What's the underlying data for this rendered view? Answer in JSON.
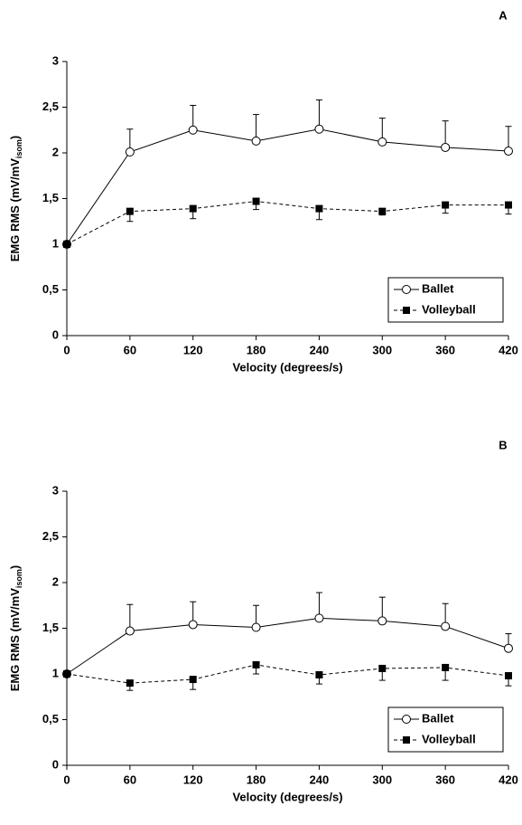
{
  "chart_data": [
    {
      "type": "line",
      "panel": "A",
      "ylabel": "EMG RMS (mV/mV",
      "ylabel_sub": "isom",
      "ylabel_end": ")",
      "xlabel": "Velocity (degrees/s)",
      "x": [
        0,
        60,
        120,
        180,
        240,
        300,
        360,
        420
      ],
      "xlim": [
        0,
        420
      ],
      "xticks": [
        0,
        60,
        120,
        180,
        240,
        300,
        360,
        420
      ],
      "ylim": [
        0,
        3
      ],
      "yticks": [
        0,
        {
          "value": 0.5,
          "label": "0,5"
        },
        1,
        {
          "value": 1.5,
          "label": "1,5"
        },
        2,
        {
          "value": 2.5,
          "label": "2,5"
        },
        3
      ],
      "legend": "lower right",
      "series": [
        {
          "name": "Ballet",
          "color": "#000000",
          "marker": "circle",
          "dash": false,
          "error_side": "upper",
          "values": [
            1,
            2.01,
            2.25,
            2.13,
            2.26,
            2.12,
            2.06,
            2.02
          ],
          "errors": [
            0,
            0.25,
            0.27,
            0.29,
            0.32,
            0.26,
            0.29,
            0.27
          ]
        },
        {
          "name": "Volleyball",
          "color": "#000000",
          "marker": "square",
          "dash": true,
          "error_side": "lower",
          "values": [
            1,
            1.36,
            1.39,
            1.47,
            1.39,
            1.36,
            1.43,
            1.43
          ],
          "errors": [
            0,
            0.11,
            0.11,
            0.09,
            0.12,
            0.04,
            0.09,
            0.1
          ]
        }
      ]
    },
    {
      "type": "line",
      "panel": "B",
      "ylabel": "EMG RMS (mV/mV",
      "ylabel_sub": "isom",
      "ylabel_end": ")",
      "xlabel": "Velocity (degrees/s)",
      "x": [
        0,
        60,
        120,
        180,
        240,
        300,
        360,
        420
      ],
      "xlim": [
        0,
        420
      ],
      "xticks": [
        0,
        60,
        120,
        180,
        240,
        300,
        360,
        420
      ],
      "ylim": [
        0,
        3
      ],
      "yticks": [
        0,
        {
          "value": 0.5,
          "label": "0,5"
        },
        1,
        {
          "value": 1.5,
          "label": "1,5"
        },
        2,
        {
          "value": 2.5,
          "label": "2,5"
        },
        3
      ],
      "legend": "lower right",
      "series": [
        {
          "name": "Ballet",
          "color": "#000000",
          "marker": "circle",
          "dash": false,
          "error_side": "upper",
          "values": [
            1,
            1.47,
            1.54,
            1.51,
            1.61,
            1.58,
            1.52,
            1.28
          ],
          "errors": [
            0,
            0.29,
            0.25,
            0.24,
            0.28,
            0.26,
            0.25,
            0.16
          ]
        },
        {
          "name": "Volleyball",
          "color": "#000000",
          "marker": "square",
          "dash": true,
          "error_side": "lower",
          "values": [
            1,
            0.9,
            0.94,
            1.1,
            0.99,
            1.06,
            1.07,
            0.98
          ],
          "errors": [
            0,
            0.08,
            0.11,
            0.1,
            0.1,
            0.13,
            0.14,
            0.11
          ]
        }
      ]
    }
  ]
}
